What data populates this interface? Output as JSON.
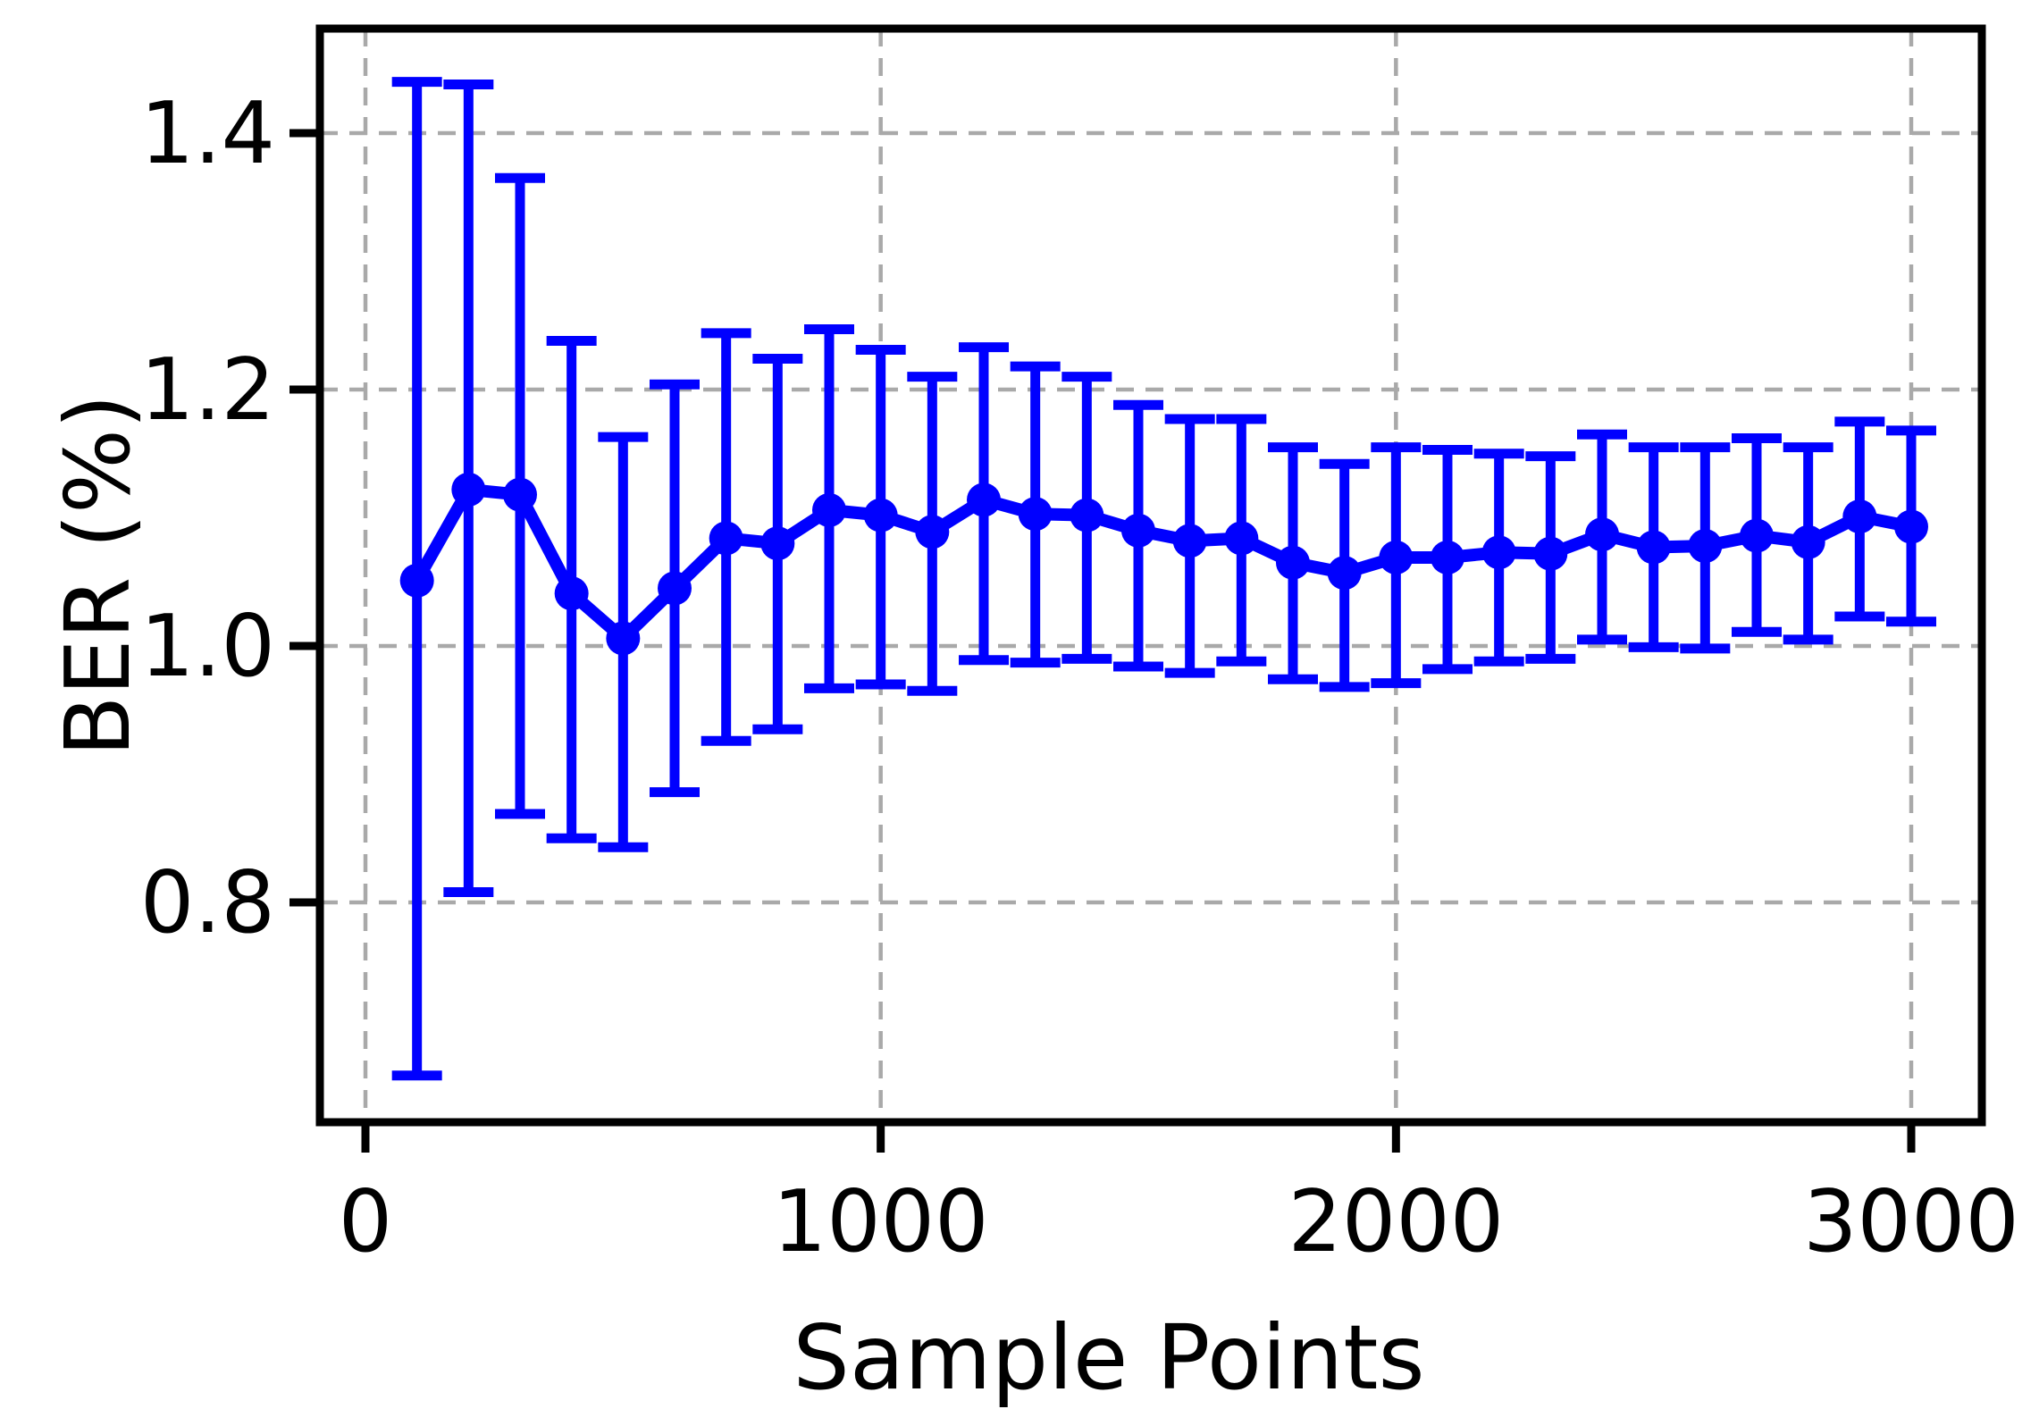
{
  "figure": {
    "background_color": "#ffffff",
    "line_color": "#0000ff",
    "grid_color": "#a9a9a9",
    "spine_color": "#000000",
    "xlabel": "Sample Points",
    "ylabel": "BER (%)"
  },
  "chart_data": {
    "type": "line",
    "title": "",
    "xlabel": "Sample Points",
    "ylabel": "BER (%)",
    "grid": "dashed, gray, both axes",
    "legend": "none",
    "marker": "filled circle",
    "error_bars": "symmetric caps, vertical, same blue as line",
    "xlim": [
      -90,
      3140
    ],
    "ylim": [
      0.628,
      1.482
    ],
    "x": [
      100,
      200,
      300,
      400,
      500,
      600,
      700,
      800,
      900,
      1000,
      1100,
      1200,
      1300,
      1400,
      1500,
      1600,
      1700,
      1800,
      1900,
      2000,
      2100,
      2200,
      2300,
      2400,
      2500,
      2600,
      2700,
      2800,
      2900,
      3000
    ],
    "series": [
      {
        "name": "BER (%)",
        "color": "#0000ff",
        "values": [
          1.051,
          1.122,
          1.118,
          1.041,
          1.006,
          1.045,
          1.084,
          1.08,
          1.106,
          1.102,
          1.089,
          1.114,
          1.103,
          1.102,
          1.09,
          1.082,
          1.084,
          1.065,
          1.057,
          1.069,
          1.069,
          1.073,
          1.072,
          1.087,
          1.077,
          1.078,
          1.086,
          1.081,
          1.101,
          1.093
        ],
        "err_upper": [
          1.44,
          1.438,
          1.365,
          1.238,
          1.163,
          1.204,
          1.244,
          1.224,
          1.247,
          1.231,
          1.21,
          1.233,
          1.218,
          1.21,
          1.188,
          1.177,
          1.177,
          1.155,
          1.142,
          1.155,
          1.153,
          1.15,
          1.148,
          1.165,
          1.155,
          1.155,
          1.162,
          1.155,
          1.175,
          1.168
        ],
        "err_lower": [
          0.665,
          0.808,
          0.869,
          0.85,
          0.843,
          0.886,
          0.926,
          0.935,
          0.967,
          0.97,
          0.965,
          0.989,
          0.987,
          0.99,
          0.984,
          0.979,
          0.988,
          0.974,
          0.968,
          0.971,
          0.982,
          0.988,
          0.99,
          1.005,
          0.999,
          0.998,
          1.011,
          1.005,
          1.023,
          1.019
        ]
      }
    ],
    "axes": {
      "xticks": {
        "values": [
          0,
          1000,
          2000,
          3000
        ],
        "labels": [
          "0",
          "1000",
          "2000",
          "3000"
        ]
      },
      "yticks": {
        "values": [
          0.8,
          1.0,
          1.2,
          1.4
        ],
        "labels": [
          "0.8",
          "1.0",
          "1.2",
          "1.4"
        ]
      }
    }
  }
}
